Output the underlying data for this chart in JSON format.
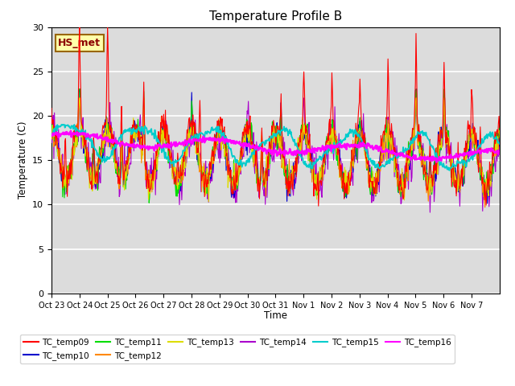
{
  "title": "Temperature Profile B",
  "xlabel": "Time",
  "ylabel": "Temperature (C)",
  "ylim": [
    0,
    30
  ],
  "yticks": [
    0,
    5,
    10,
    15,
    20,
    25,
    30
  ],
  "annotation": "HS_met",
  "series_colors": {
    "TC_temp09": "#ff0000",
    "TC_temp10": "#0000cc",
    "TC_temp11": "#00dd00",
    "TC_temp12": "#ff8800",
    "TC_temp13": "#dddd00",
    "TC_temp14": "#aa00cc",
    "TC_temp15": "#00cccc",
    "TC_temp16": "#ff00ff"
  },
  "background_color": "#dcdcdc",
  "grid_color": "#ffffff",
  "tick_labels": [
    "Oct 23",
    "Oct 24",
    "Oct 25",
    "Oct 26",
    "Oct 27",
    "Oct 28",
    "Oct 29",
    "Oct 30",
    "Oct 31",
    "Nov 1",
    "Nov 2",
    "Nov 3",
    "Nov 4",
    "Nov 5",
    "Nov 6",
    "Nov 7"
  ]
}
